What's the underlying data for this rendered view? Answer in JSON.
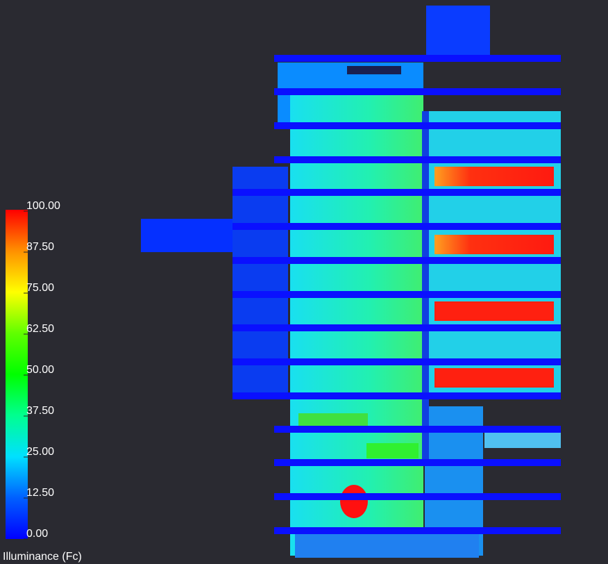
{
  "legend": {
    "title": "Illuminance (Fc)",
    "ticks": [
      {
        "value": 100,
        "label": "100.00"
      },
      {
        "value": 87.5,
        "label": "87.50"
      },
      {
        "value": 75,
        "label": "75.00"
      },
      {
        "value": 62.5,
        "label": "62.50"
      },
      {
        "value": 50,
        "label": "50.00"
      },
      {
        "value": 37.5,
        "label": "37.50"
      },
      {
        "value": 25,
        "label": "25.00"
      },
      {
        "value": 12.5,
        "label": "12.50"
      },
      {
        "value": 0,
        "label": "0.00"
      }
    ]
  }
}
